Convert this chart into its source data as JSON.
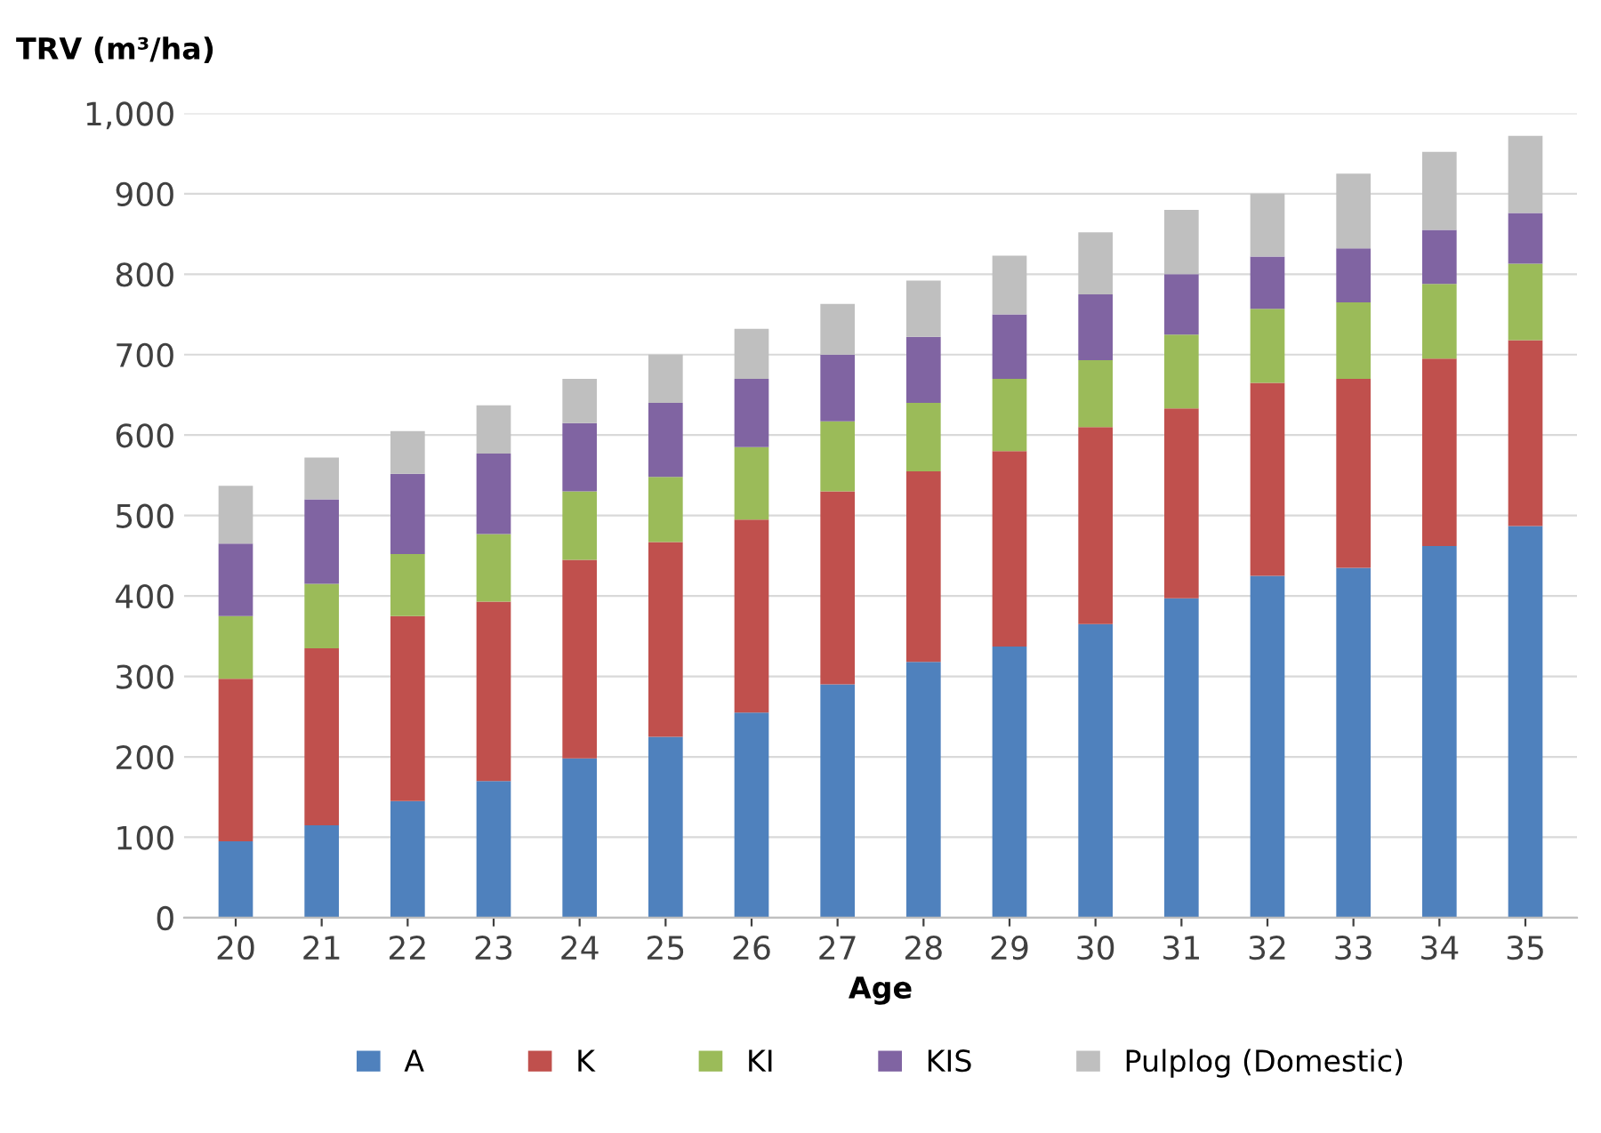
{
  "chart_data": {
    "type": "bar",
    "stacked": true,
    "ylabel": "TRV (m³/ha)",
    "xlabel": "Age",
    "categories": [
      "20",
      "21",
      "22",
      "23",
      "24",
      "25",
      "26",
      "27",
      "28",
      "29",
      "30",
      "31",
      "32",
      "33",
      "34",
      "35"
    ],
    "series": [
      {
        "name": "A",
        "color": "#4f81bd",
        "values": [
          95,
          115,
          145,
          170,
          198,
          225,
          255,
          290,
          318,
          337,
          365,
          397,
          425,
          435,
          462,
          487
        ]
      },
      {
        "name": "K",
        "color": "#c0504d",
        "values": [
          202,
          220,
          230,
          223,
          247,
          242,
          240,
          240,
          237,
          243,
          245,
          236,
          240,
          235,
          233,
          231
        ]
      },
      {
        "name": "KI",
        "color": "#9bbb59",
        "values": [
          78,
          80,
          77,
          84,
          85,
          81,
          90,
          87,
          85,
          90,
          83,
          92,
          92,
          95,
          93,
          95
        ]
      },
      {
        "name": "KIS",
        "color": "#8064a2",
        "values": [
          90,
          105,
          100,
          100,
          85,
          92,
          85,
          83,
          82,
          80,
          82,
          75,
          65,
          67,
          67,
          63
        ]
      },
      {
        "name": "Pulplog (Domestic)",
        "color": "#bfbfbf",
        "values": [
          72,
          52,
          53,
          60,
          55,
          60,
          62,
          63,
          70,
          73,
          77,
          80,
          78,
          93,
          97,
          96
        ]
      }
    ],
    "ylim": [
      0,
      1000
    ],
    "yticks": [
      0,
      100,
      200,
      300,
      400,
      500,
      600,
      700,
      800,
      900,
      {
        "value": 1000,
        "label": "1,000"
      }
    ],
    "grid": "y",
    "legend": "bottom"
  }
}
